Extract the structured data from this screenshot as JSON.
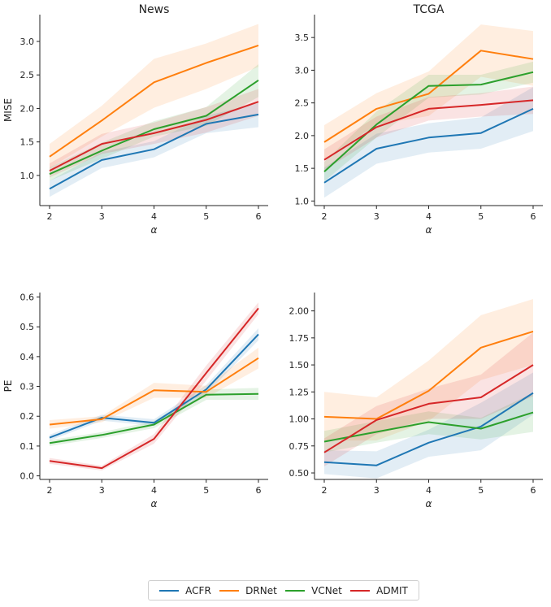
{
  "chart_data": [
    {
      "type": "line",
      "title": "News",
      "xlabel": "α",
      "ylabel": "MISE",
      "x": [
        2,
        3,
        4,
        5,
        6
      ],
      "ylim": [
        0.55,
        3.4
      ],
      "yticks": [
        "1.0",
        "1.5",
        "2.0",
        "2.5",
        "3.0"
      ],
      "ytick_values": [
        1.0,
        1.5,
        2.0,
        2.5,
        3.0
      ],
      "series": [
        {
          "name": "ACFR",
          "values": [
            0.8,
            1.23,
            1.39,
            1.77,
            1.91
          ],
          "lower": [
            0.68,
            1.11,
            1.27,
            1.63,
            1.72
          ],
          "upper": [
            0.92,
            1.35,
            1.51,
            1.89,
            2.08
          ]
        },
        {
          "name": "DRNet",
          "values": [
            1.28,
            1.82,
            2.39,
            2.68,
            2.94
          ],
          "lower": [
            1.11,
            1.58,
            2.01,
            2.29,
            2.62
          ],
          "upper": [
            1.47,
            2.04,
            2.74,
            2.97,
            3.26
          ]
        },
        {
          "name": "VCNet",
          "values": [
            1.02,
            1.37,
            1.69,
            1.89,
            2.42
          ],
          "lower": [
            0.92,
            1.25,
            1.58,
            1.74,
            2.17
          ],
          "upper": [
            1.12,
            1.49,
            1.81,
            2.02,
            2.66
          ]
        },
        {
          "name": "ADMIT",
          "values": [
            1.07,
            1.47,
            1.63,
            1.83,
            2.1
          ],
          "lower": [
            0.97,
            1.32,
            1.47,
            1.64,
            1.89
          ],
          "upper": [
            1.18,
            1.62,
            1.79,
            2.02,
            2.29
          ]
        }
      ]
    },
    {
      "type": "line",
      "title": "TCGA",
      "xlabel": "α",
      "ylabel": "",
      "x": [
        2,
        3,
        4,
        5,
        6
      ],
      "ylim": [
        0.93,
        3.85
      ],
      "yticks": [
        "1.0",
        "1.5",
        "2.0",
        "2.5",
        "3.0",
        "3.5"
      ],
      "ytick_values": [
        1.0,
        1.5,
        2.0,
        2.5,
        3.0,
        3.5
      ],
      "series": [
        {
          "name": "ACFR",
          "values": [
            1.28,
            1.8,
            1.97,
            2.04,
            2.41
          ],
          "lower": [
            1.05,
            1.57,
            1.74,
            1.8,
            2.07
          ],
          "upper": [
            1.51,
            2.03,
            2.19,
            2.28,
            2.74
          ]
        },
        {
          "name": "DRNet",
          "values": [
            1.9,
            2.41,
            2.64,
            3.3,
            3.17
          ],
          "lower": [
            1.64,
            2.17,
            2.3,
            2.9,
            2.76
          ],
          "upper": [
            2.16,
            2.65,
            2.98,
            3.7,
            3.6
          ]
        },
        {
          "name": "VCNet",
          "values": [
            1.45,
            2.17,
            2.76,
            2.78,
            2.97
          ],
          "lower": [
            1.3,
            1.97,
            2.58,
            2.63,
            2.81
          ],
          "upper": [
            1.6,
            2.37,
            2.93,
            2.93,
            3.13
          ]
        },
        {
          "name": "ADMIT",
          "values": [
            1.63,
            2.13,
            2.41,
            2.47,
            2.54
          ],
          "lower": [
            1.47,
            1.97,
            2.23,
            2.29,
            2.33
          ],
          "upper": [
            1.79,
            2.29,
            2.59,
            2.65,
            2.75
          ]
        }
      ]
    },
    {
      "type": "line",
      "title": "",
      "xlabel": "α",
      "ylabel": "PE",
      "x": [
        2,
        3,
        4,
        5,
        6
      ],
      "ylim": [
        -0.012,
        0.615
      ],
      "yticks": [
        "0.0",
        "0.1",
        "0.2",
        "0.3",
        "0.4",
        "0.5",
        "0.6"
      ],
      "ytick_values": [
        0.0,
        0.1,
        0.2,
        0.3,
        0.4,
        0.5,
        0.6
      ],
      "series": [
        {
          "name": "ACFR",
          "values": [
            0.128,
            0.195,
            0.178,
            0.29,
            0.475
          ],
          "lower": [
            0.118,
            0.185,
            0.168,
            0.275,
            0.455
          ],
          "upper": [
            0.138,
            0.205,
            0.19,
            0.305,
            0.495
          ]
        },
        {
          "name": "DRNet",
          "values": [
            0.172,
            0.19,
            0.287,
            0.282,
            0.395
          ],
          "lower": [
            0.158,
            0.18,
            0.262,
            0.262,
            0.36
          ],
          "upper": [
            0.187,
            0.2,
            0.312,
            0.302,
            0.43
          ]
        },
        {
          "name": "VCNet",
          "values": [
            0.11,
            0.137,
            0.172,
            0.272,
            0.275
          ],
          "lower": [
            0.1,
            0.127,
            0.16,
            0.255,
            0.255
          ],
          "upper": [
            0.12,
            0.147,
            0.184,
            0.29,
            0.295
          ]
        },
        {
          "name": "ADMIT",
          "values": [
            0.05,
            0.026,
            0.124,
            0.345,
            0.562
          ],
          "lower": [
            0.04,
            0.018,
            0.108,
            0.32,
            0.542
          ],
          "upper": [
            0.06,
            0.034,
            0.14,
            0.37,
            0.582
          ]
        }
      ]
    },
    {
      "type": "line",
      "title": "",
      "xlabel": "α",
      "ylabel": "",
      "x": [
        2,
        3,
        4,
        5,
        6
      ],
      "ylim": [
        0.44,
        2.17
      ],
      "yticks": [
        "0.50",
        "0.75",
        "1.00",
        "1.25",
        "1.50",
        "1.75",
        "2.00"
      ],
      "ytick_values": [
        0.5,
        0.75,
        1.0,
        1.25,
        1.5,
        1.75,
        2.0
      ],
      "series": [
        {
          "name": "ACFR",
          "values": [
            0.6,
            0.57,
            0.78,
            0.93,
            1.24
          ],
          "lower": [
            0.49,
            0.45,
            0.65,
            0.71,
            1.04
          ],
          "upper": [
            0.71,
            0.7,
            0.9,
            1.15,
            1.43
          ]
        },
        {
          "name": "DRNet",
          "values": [
            1.02,
            1.0,
            1.26,
            1.66,
            1.81
          ],
          "lower": [
            0.8,
            0.8,
            0.98,
            1.36,
            1.5
          ],
          "upper": [
            1.25,
            1.2,
            1.54,
            1.96,
            2.11
          ]
        },
        {
          "name": "VCNet",
          "values": [
            0.79,
            0.88,
            0.97,
            0.91,
            1.06
          ],
          "lower": [
            0.69,
            0.78,
            0.86,
            0.81,
            0.88
          ],
          "upper": [
            0.89,
            0.98,
            1.07,
            1.01,
            1.24
          ]
        },
        {
          "name": "ADMIT",
          "values": [
            0.69,
            0.99,
            1.14,
            1.2,
            1.5
          ],
          "lower": [
            0.56,
            0.86,
            1.0,
            1.0,
            1.21
          ],
          "upper": [
            0.82,
            1.12,
            1.28,
            1.41,
            1.8
          ]
        }
      ]
    }
  ],
  "colors": {
    "ACFR": "#1f77b4",
    "DRNet": "#ff7f0e",
    "VCNet": "#2ca02c",
    "ADMIT": "#d62728"
  },
  "legend": {
    "position": "bottom-center",
    "items": [
      "ACFR",
      "DRNet",
      "VCNet",
      "ADMIT"
    ]
  }
}
